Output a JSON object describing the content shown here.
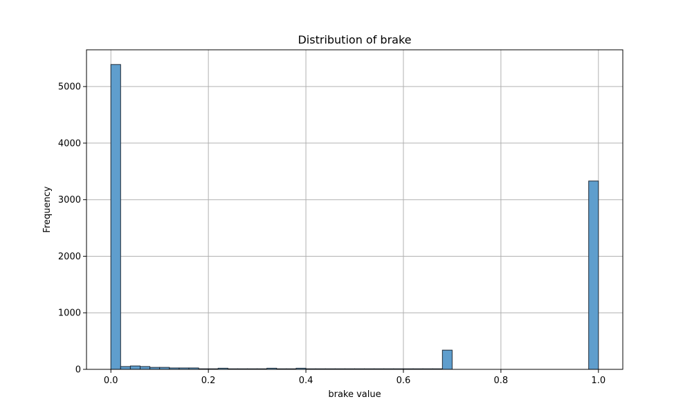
{
  "chart_data": {
    "type": "bar",
    "title": "Distribution of brake",
    "xlabel": "brake value",
    "ylabel": "Frequency",
    "xlim": [
      -0.05,
      1.05
    ],
    "ylim": [
      0,
      5650
    ],
    "xticks": [
      0.0,
      0.2,
      0.4,
      0.6,
      0.8,
      1.0
    ],
    "xtick_labels": [
      "0.0",
      "0.2",
      "0.4",
      "0.6",
      "0.8",
      "1.0"
    ],
    "yticks": [
      0,
      1000,
      2000,
      3000,
      4000,
      5000
    ],
    "ytick_labels": [
      "0",
      "1000",
      "2000",
      "3000",
      "4000",
      "5000"
    ],
    "grid": true,
    "bar_color": "#5f9ecd",
    "bar_edge_color": "#1f2a36",
    "bins": {
      "start": 0.0,
      "width": 0.02,
      "counts": [
        5390,
        50,
        60,
        50,
        35,
        35,
        25,
        25,
        25,
        10,
        10,
        20,
        10,
        10,
        10,
        10,
        20,
        10,
        10,
        20,
        10,
        10,
        10,
        10,
        10,
        10,
        10,
        10,
        10,
        10,
        10,
        10,
        10,
        10,
        340,
        0,
        0,
        0,
        0,
        0,
        0,
        0,
        0,
        0,
        0,
        0,
        0,
        0,
        0,
        3330
      ]
    }
  }
}
